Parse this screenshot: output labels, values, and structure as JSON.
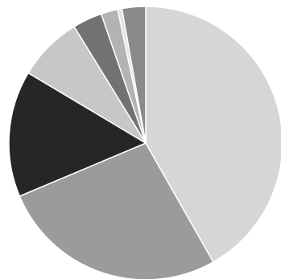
{
  "chart_data": {
    "type": "pie",
    "title": "",
    "start_angle": "top",
    "direction": "clockwise",
    "slices": [
      {
        "value": 42.0,
        "color": "#d6d6d6"
      },
      {
        "value": 27.0,
        "color": "#9b9b9b"
      },
      {
        "value": 15.0,
        "color": "#262626"
      },
      {
        "value": 7.7,
        "color": "#c7c7c7"
      },
      {
        "value": 3.5,
        "color": "#727272"
      },
      {
        "value": 2.0,
        "color": "#b3b3b3"
      },
      {
        "value": 0.5,
        "color": "#e3e3e3"
      },
      {
        "value": 2.8,
        "color": "#8a8a8a"
      }
    ],
    "legend": false,
    "data_labels": false
  }
}
